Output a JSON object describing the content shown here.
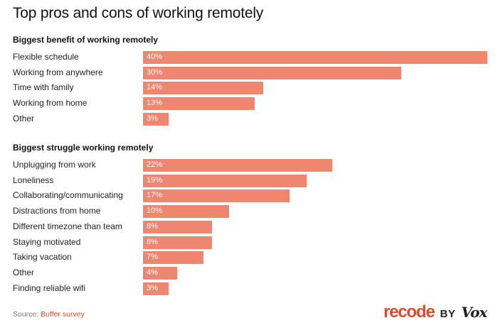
{
  "title": "Top pros and cons of working remotely",
  "source_prefix": "Source: ",
  "source_link": "Buffer survey",
  "brand": {
    "recode": "recode",
    "by": "BY",
    "vox": "Vox"
  },
  "colors": {
    "bar": "#ef8670",
    "accent": "#e2492b"
  },
  "chart_data": [
    {
      "type": "bar",
      "orientation": "horizontal",
      "title": "Biggest benefit of working remotely",
      "categories": [
        "Flexible schedule",
        "Working from anywhere",
        "Time with family",
        "Working from home",
        "Other"
      ],
      "values": [
        40,
        30,
        14,
        13,
        3
      ],
      "labels": [
        "40%",
        "30%",
        "14%",
        "13%",
        "3%"
      ],
      "unit": "%"
    },
    {
      "type": "bar",
      "orientation": "horizontal",
      "title": "Biggest struggle working remotely",
      "categories": [
        "Unplugging from work",
        "Loneliness",
        "Collaborating/communicating",
        "Distractions from home",
        "Different timezone than team",
        "Staying motivated",
        "Taking vacation",
        "Other",
        "Finding reliable wifi"
      ],
      "values": [
        22,
        19,
        17,
        10,
        8,
        8,
        7,
        4,
        3
      ],
      "labels": [
        "22%",
        "19%",
        "17%",
        "10%",
        "8%",
        "8%",
        "7%",
        "4%",
        "3%"
      ],
      "unit": "%"
    }
  ]
}
